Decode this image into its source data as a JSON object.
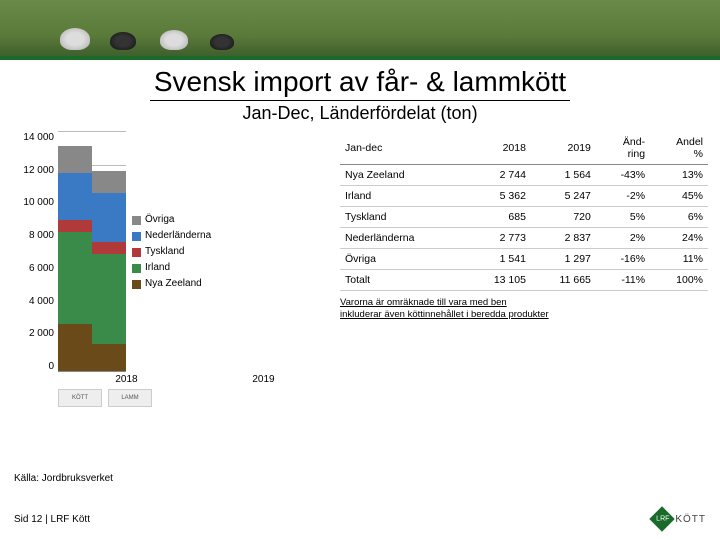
{
  "banner": {
    "bg": "#5a7a3a"
  },
  "title": "Svensk import av får- & lammkött",
  "subtitle": "Jan-Dec, Länderfördelat (ton)",
  "chart": {
    "type": "stacked-bar",
    "y_max": 14000,
    "y_ticks": [
      "14 000",
      "12 000",
      "10 000",
      "8 000",
      "6 000",
      "4 000",
      "2 000",
      "0"
    ],
    "categories": [
      "2018",
      "2019"
    ],
    "series_order": [
      "Nya Zeeland",
      "Irland",
      "Tyskland",
      "Nederländerna",
      "Övriga"
    ],
    "colors": {
      "Nya Zeeland": "#6b4a1a",
      "Irland": "#3a8a4a",
      "Tyskland": "#b03a3a",
      "Nederländerna": "#3a7ac4",
      "Övriga": "#888888"
    },
    "data": {
      "2018": {
        "Nya Zeeland": 2744,
        "Irland": 5362,
        "Tyskland": 685,
        "Nederländerna": 2773,
        "Övriga": 1541
      },
      "2019": {
        "Nya Zeeland": 1564,
        "Irland": 5247,
        "Tyskland": 720,
        "Nederländerna": 2837,
        "Övriga": 1297
      }
    },
    "legend_order": [
      "Övriga",
      "Nederländerna",
      "Tyskland",
      "Irland",
      "Nya Zeeland"
    ]
  },
  "table": {
    "headers": [
      "Jan-dec",
      "2018",
      "2019",
      "Änd-\nring",
      "Andel\n%"
    ],
    "rows": [
      [
        "Nya Zeeland",
        "2 744",
        "1 564",
        "-43%",
        "13%"
      ],
      [
        "Irland",
        "5 362",
        "5 247",
        "-2%",
        "45%"
      ],
      [
        "Tyskland",
        "685",
        "720",
        "5%",
        "6%"
      ],
      [
        "Nederländerna",
        "2 773",
        "2 837",
        "2%",
        "24%"
      ],
      [
        "Övriga",
        "1 541",
        "1 297",
        "-16%",
        "11%"
      ],
      [
        "Totalt",
        "13 105",
        "11 665",
        "-11%",
        "100%"
      ]
    ]
  },
  "small_logos": [
    "KÖTT",
    "LAMM"
  ],
  "note": "Varorna är omräknade till vara med ben\ninkluderar även köttinnehållet i beredda produkter",
  "source": "Källa: Jordbruksverket",
  "footer_left": "Sid 12 | LRF Kött",
  "footer_logo": {
    "badge": "LRF",
    "text": "KÖTT"
  }
}
